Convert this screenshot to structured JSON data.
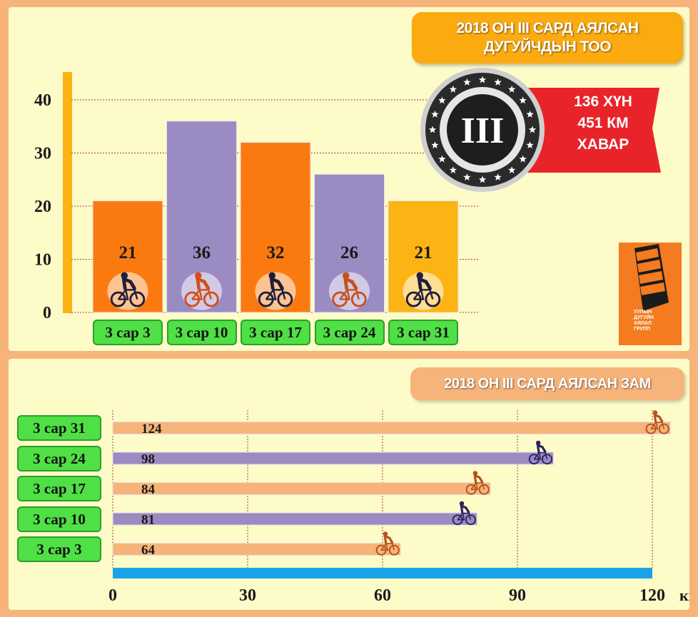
{
  "top_panel": {
    "title_line1": "2018 ОН III САРД АЯЛСАН",
    "title_line2": "ДУГУЙЧДЫН ТОО",
    "badge_numeral": "III",
    "ribbon": {
      "line1": "136 ХҮН",
      "line2": "451 КМ",
      "line3": "ХАВАР"
    },
    "logo_text": [
      "УУЛЫН",
      "ДУГУЙН",
      "АЯЛАЛ",
      "ГРУПП"
    ]
  },
  "bottom_panel": {
    "title": "2018 ОН III САРД АЯЛСАН ЗАМ",
    "x_unit": "км"
  },
  "colors": {
    "orange": "#fb7a10",
    "purple": "#9b8bc3",
    "yellow_orange": "#fcb314",
    "peach": "#f7b47a",
    "green": "#4fe045",
    "blue": "#1aa3e8",
    "red": "#e8242a"
  },
  "chart_data": [
    {
      "type": "bar",
      "title": "2018 ОН III САРД АЯЛСАН ДУГУЙЧДЫН ТОО",
      "categories": [
        "3 сар 3",
        "3 сар 10",
        "3 сар 17",
        "3 сар 24",
        "3 сар 31"
      ],
      "values": [
        21,
        36,
        32,
        26,
        21
      ],
      "value_labels": [
        "21",
        "36",
        "32",
        "26",
        "21"
      ],
      "ylim": [
        0,
        45
      ],
      "yticks": [
        "0",
        "10",
        "20",
        "30",
        "40"
      ],
      "grid": true
    },
    {
      "type": "bar",
      "orientation": "horizontal",
      "title": "2018 ОН III САРД АЯЛСАН ЗАМ",
      "categories": [
        "3 сар 31",
        "3 сар 24",
        "3 сар 17",
        "3 сар 10",
        "3 сар 3"
      ],
      "values": [
        124,
        98,
        84,
        81,
        64
      ],
      "value_labels": [
        "124",
        "98",
        "84",
        "81",
        "64"
      ],
      "xlim": [
        0,
        120
      ],
      "xticks": [
        "0",
        "30",
        "60",
        "90",
        "120"
      ],
      "xunit": "км",
      "grid": true
    }
  ]
}
